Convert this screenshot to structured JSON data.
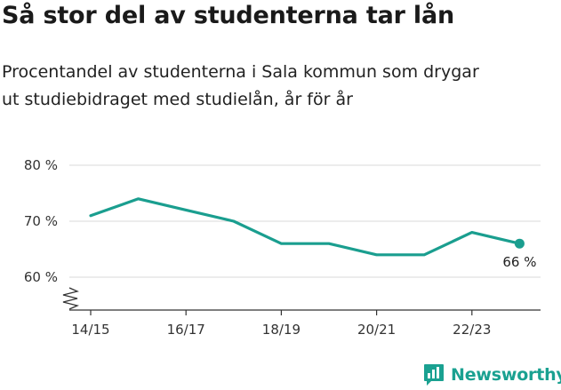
{
  "title": "Så stor del av studenterna tar lån",
  "subtitle": [
    "Procentandel av studenterna i Sala kommun som drygar",
    "ut studiebidraget med studielån, år för år"
  ],
  "brand": "Newsworthy",
  "colors": {
    "line": "#1a9e8f",
    "grid": "#d9d9d9",
    "axis": "#333333",
    "brand": "#1aa191"
  },
  "chart_data": {
    "type": "line",
    "title": "Så stor del av studenterna tar lån",
    "subtitle": "Procentandel av studenterna i Sala kommun som drygar ut studiebidraget med studielån, år för år",
    "categories": [
      "14/15",
      "15/16",
      "16/17",
      "17/18",
      "18/19",
      "19/20",
      "20/21",
      "21/22",
      "22/23",
      "23/24"
    ],
    "x_tick_labels": [
      "14/15",
      "16/17",
      "18/19",
      "20/21",
      "22/23"
    ],
    "series": [
      {
        "values": [
          71,
          74,
          72,
          70,
          66,
          66,
          64,
          64,
          68,
          66
        ]
      }
    ],
    "y_ticks": [
      60,
      70,
      80
    ],
    "y_tick_labels": [
      "60 %",
      "70 %",
      "80 %"
    ],
    "ylim": [
      60,
      80
    ],
    "y_axis_break": true,
    "end_label": "66 %",
    "grid": true,
    "xlabel": "",
    "ylabel": ""
  }
}
